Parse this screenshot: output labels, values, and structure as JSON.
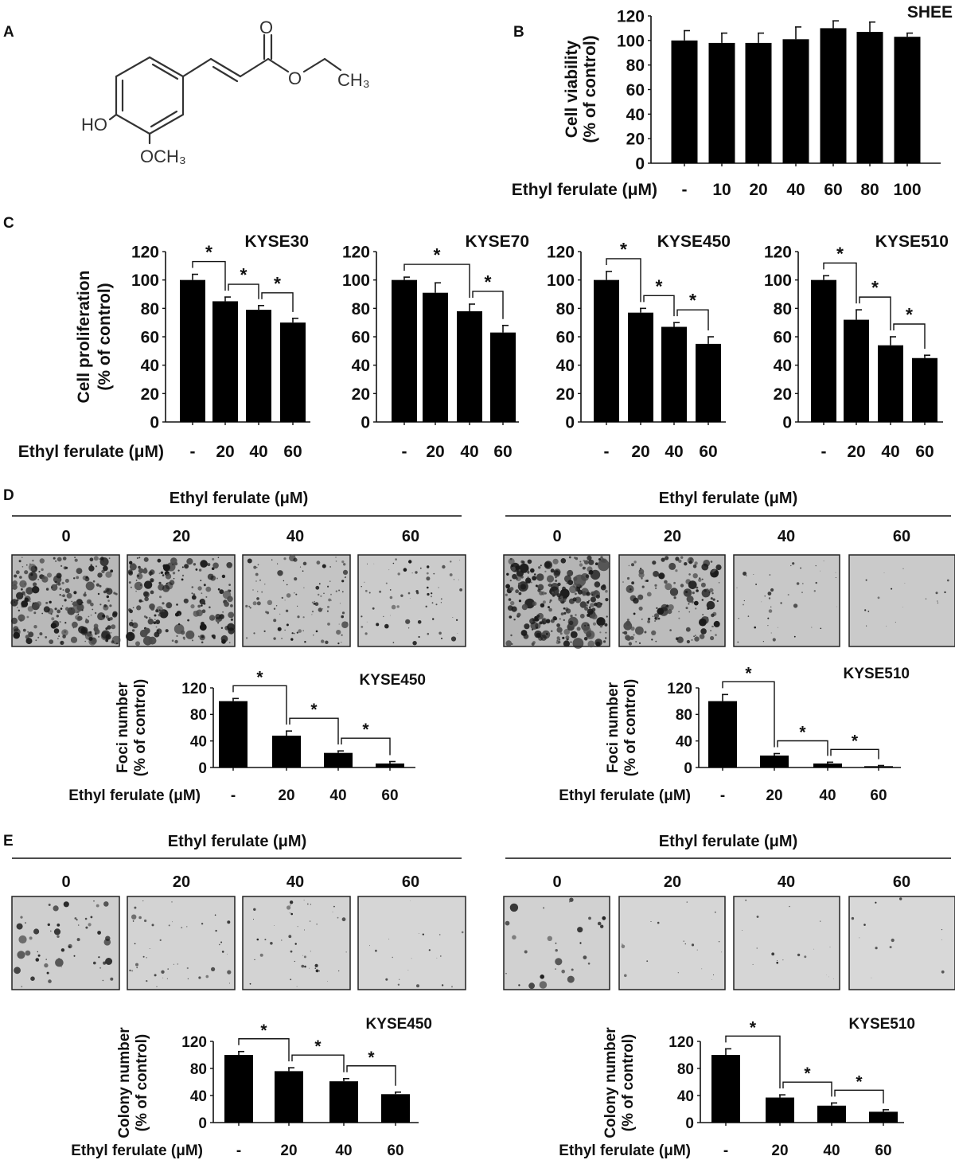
{
  "panels": {
    "A": "A",
    "B": "B",
    "C": "C",
    "D": "D",
    "E": "E"
  },
  "structure": {
    "carbonyl_o": "O",
    "ester_o": "O",
    "methyl": "CH₃",
    "hydroxyl": "HO",
    "methoxy": "OCH₃"
  },
  "micrographs": {
    "D": {
      "left": {
        "header": "Ethyl ferulate (μM)",
        "doses": [
          "0",
          "20",
          "40",
          "60"
        ]
      },
      "right": {
        "header": "Ethyl ferulate (μM)",
        "doses": [
          "0",
          "20",
          "40",
          "60"
        ]
      }
    },
    "E": {
      "left": {
        "header": "Ethyl ferulate (μM)",
        "doses": [
          "0",
          "20",
          "40",
          "60"
        ]
      },
      "right": {
        "header": "Ethyl ferulate (μM)",
        "doses": [
          "0",
          "20",
          "40",
          "60"
        ]
      }
    }
  },
  "colors": {
    "bar": "#000000",
    "background": "#ffffff"
  },
  "chart_data": [
    {
      "type": "bar",
      "panel": "B",
      "title": "SHEE",
      "ylabel": [
        "Cell viability",
        "(% of control)"
      ],
      "xlabel": "Ethyl ferulate (μM)",
      "categories": [
        "-",
        "10",
        "20",
        "40",
        "60",
        "80",
        "100"
      ],
      "values": [
        100,
        98,
        98,
        101,
        110,
        107,
        103
      ],
      "errors": [
        8,
        8,
        8,
        10,
        6,
        8,
        3
      ],
      "ylim": [
        0,
        120
      ],
      "yticks": [
        "0",
        "20",
        "40",
        "60",
        "80",
        "100",
        "120"
      ],
      "significance": []
    },
    {
      "type": "bar",
      "panel": "C",
      "title": "KYSE30",
      "ylabel": [
        "Cell proliferation",
        "(% of control)"
      ],
      "xlabel": "Ethyl ferulate (μM)",
      "categories": [
        "-",
        "20",
        "40",
        "60"
      ],
      "values": [
        100,
        85,
        79,
        70
      ],
      "errors": [
        4,
        3,
        3,
        3
      ],
      "ylim": [
        0,
        120
      ],
      "yticks": [
        "0",
        "20",
        "40",
        "60",
        "80",
        "100",
        "120"
      ],
      "significance": [
        [
          0,
          1,
          "*"
        ],
        [
          1,
          2,
          "*"
        ],
        [
          2,
          3,
          "*"
        ]
      ]
    },
    {
      "type": "bar",
      "panel": "C",
      "title": "KYSE70",
      "categories": [
        "-",
        "20",
        "40",
        "60"
      ],
      "values": [
        100,
        91,
        78,
        63
      ],
      "errors": [
        2,
        7,
        5,
        5
      ],
      "ylim": [
        0,
        120
      ],
      "yticks": [
        "0",
        "20",
        "40",
        "60",
        "80",
        "100",
        "120"
      ],
      "significance": [
        [
          0,
          2,
          "*"
        ],
        [
          2,
          3,
          "*"
        ]
      ]
    },
    {
      "type": "bar",
      "panel": "C",
      "title": "KYSE450",
      "categories": [
        "-",
        "20",
        "40",
        "60"
      ],
      "values": [
        100,
        77,
        67,
        55
      ],
      "errors": [
        6,
        3,
        3,
        5
      ],
      "ylim": [
        0,
        120
      ],
      "yticks": [
        "0",
        "20",
        "40",
        "60",
        "80",
        "100",
        "120"
      ],
      "significance": [
        [
          0,
          1,
          "*"
        ],
        [
          1,
          2,
          "*"
        ],
        [
          2,
          3,
          "*"
        ]
      ]
    },
    {
      "type": "bar",
      "panel": "C",
      "title": "KYSE510",
      "categories": [
        "-",
        "20",
        "40",
        "60"
      ],
      "values": [
        100,
        72,
        54,
        45
      ],
      "errors": [
        3,
        7,
        6,
        2
      ],
      "ylim": [
        0,
        120
      ],
      "yticks": [
        "0",
        "20",
        "40",
        "60",
        "80",
        "100",
        "120"
      ],
      "significance": [
        [
          0,
          1,
          "*"
        ],
        [
          1,
          2,
          "*"
        ],
        [
          2,
          3,
          "*"
        ]
      ]
    },
    {
      "type": "bar",
      "panel": "D",
      "title": "KYSE450",
      "ylabel": [
        "Foci number",
        "(% of control)"
      ],
      "xlabel": "Ethyl ferulate (μM)",
      "categories": [
        "-",
        "20",
        "40",
        "60"
      ],
      "values": [
        100,
        48,
        22,
        6
      ],
      "errors": [
        4,
        7,
        3,
        3
      ],
      "ylim": [
        0,
        120
      ],
      "yticks": [
        "0",
        "40",
        "80",
        "120"
      ],
      "significance": [
        [
          0,
          1,
          "*"
        ],
        [
          1,
          2,
          "*"
        ],
        [
          2,
          3,
          "*"
        ]
      ]
    },
    {
      "type": "bar",
      "panel": "D",
      "title": "KYSE510",
      "ylabel": [
        "Foci number",
        "(% of control)"
      ],
      "xlabel": "Ethyl ferulate (μM)",
      "categories": [
        "-",
        "20",
        "40",
        "60"
      ],
      "values": [
        100,
        18,
        6,
        2
      ],
      "errors": [
        10,
        3,
        2,
        1
      ],
      "ylim": [
        0,
        120
      ],
      "yticks": [
        "0",
        "40",
        "80",
        "120"
      ],
      "significance": [
        [
          0,
          1,
          "*"
        ],
        [
          1,
          2,
          "*"
        ],
        [
          2,
          3,
          "*"
        ]
      ]
    },
    {
      "type": "bar",
      "panel": "E",
      "title": "KYSE450",
      "ylabel": [
        "Colony number",
        "(% of control)"
      ],
      "xlabel": "Ethyl ferulate (μM)",
      "categories": [
        "-",
        "20",
        "40",
        "60"
      ],
      "values": [
        100,
        76,
        61,
        42
      ],
      "errors": [
        5,
        5,
        4,
        3
      ],
      "ylim": [
        0,
        120
      ],
      "yticks": [
        "0",
        "40",
        "80",
        "120"
      ],
      "significance": [
        [
          0,
          1,
          "*"
        ],
        [
          1,
          2,
          "*"
        ],
        [
          2,
          3,
          "*"
        ]
      ]
    },
    {
      "type": "bar",
      "panel": "E",
      "title": "KYSE510",
      "ylabel": [
        "Colony number",
        "(% of control)"
      ],
      "xlabel": "Ethyl ferulate (μM)",
      "categories": [
        "-",
        "20",
        "40",
        "60"
      ],
      "values": [
        100,
        37,
        25,
        16
      ],
      "errors": [
        9,
        4,
        4,
        3
      ],
      "ylim": [
        0,
        120
      ],
      "yticks": [
        "0",
        "40",
        "80",
        "120"
      ],
      "significance": [
        [
          0,
          1,
          "*"
        ],
        [
          1,
          2,
          "*"
        ],
        [
          2,
          3,
          "*"
        ]
      ]
    }
  ]
}
